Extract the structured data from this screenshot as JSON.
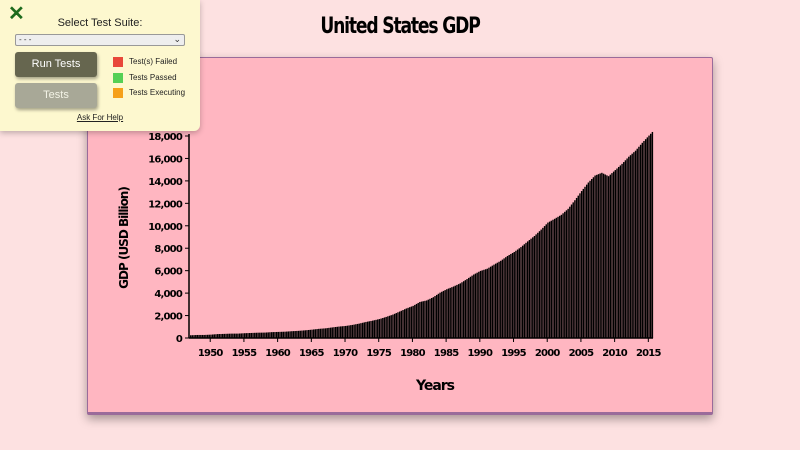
{
  "page": {
    "title": "United States GDP"
  },
  "panel": {
    "close_icon": "close-x-icon",
    "suite_label": "Select Test Suite:",
    "suite_selected": "- - -",
    "run_button": "Run Tests",
    "tests_button": "Tests",
    "legend": [
      {
        "label": "Test(s) Failed",
        "color": "#e8483a"
      },
      {
        "label": "Tests Passed",
        "color": "#55d055"
      },
      {
        "label": "Tests Executing",
        "color": "#f5a01a"
      }
    ],
    "help_link": "Ask For Help"
  },
  "chart_data": {
    "type": "bar",
    "title": "United States GDP",
    "xlabel": "Years",
    "ylabel": "GDP (USD Billion)",
    "ylim": [
      0,
      18000
    ],
    "yticks": [
      "0",
      "2,000",
      "4,000",
      "6,000",
      "8,000",
      "10,000",
      "12,000",
      "14,000",
      "16,000",
      "18,000"
    ],
    "xticks": [
      "1950",
      "1955",
      "1960",
      "1965",
      "1970",
      "1975",
      "1980",
      "1985",
      "1990",
      "1995",
      "2000",
      "2005",
      "2010",
      "2015"
    ],
    "bar_color": "#000000",
    "frequency": "quarterly",
    "x": [
      1947,
      1948,
      1949,
      1950,
      1951,
      1952,
      1953,
      1954,
      1955,
      1956,
      1957,
      1958,
      1959,
      1960,
      1961,
      1962,
      1963,
      1964,
      1965,
      1966,
      1967,
      1968,
      1969,
      1970,
      1971,
      1972,
      1973,
      1974,
      1975,
      1976,
      1977,
      1978,
      1979,
      1980,
      1981,
      1982,
      1983,
      1984,
      1985,
      1986,
      1987,
      1988,
      1989,
      1990,
      1991,
      1992,
      1993,
      1994,
      1995,
      1996,
      1997,
      1998,
      1999,
      2000,
      2001,
      2002,
      2003,
      2004,
      2005,
      2006,
      2007,
      2008,
      2009,
      2010,
      2011,
      2012,
      2013,
      2014,
      2015
    ],
    "values": [
      244,
      270,
      272,
      300,
      348,
      368,
      389,
      391,
      426,
      450,
      474,
      482,
      522,
      543,
      563,
      605,
      638,
      686,
      744,
      815,
      862,
      943,
      1019,
      1075,
      1167,
      1283,
      1429,
      1549,
      1689,
      1878,
      2086,
      2357,
      2632,
      2862,
      3211,
      3345,
      3638,
      4041,
      4347,
      4590,
      4870,
      5253,
      5658,
      5980,
      6174,
      6539,
      6879,
      7309,
      7664,
      8100,
      8609,
      9089,
      9661,
      10285,
      10622,
      10978,
      11511,
      12275,
      13094,
      13856,
      14478,
      14719,
      14419,
      14964,
      15518,
      16155,
      16692,
      17393,
      18037
    ],
    "grid": false,
    "legend": null
  }
}
